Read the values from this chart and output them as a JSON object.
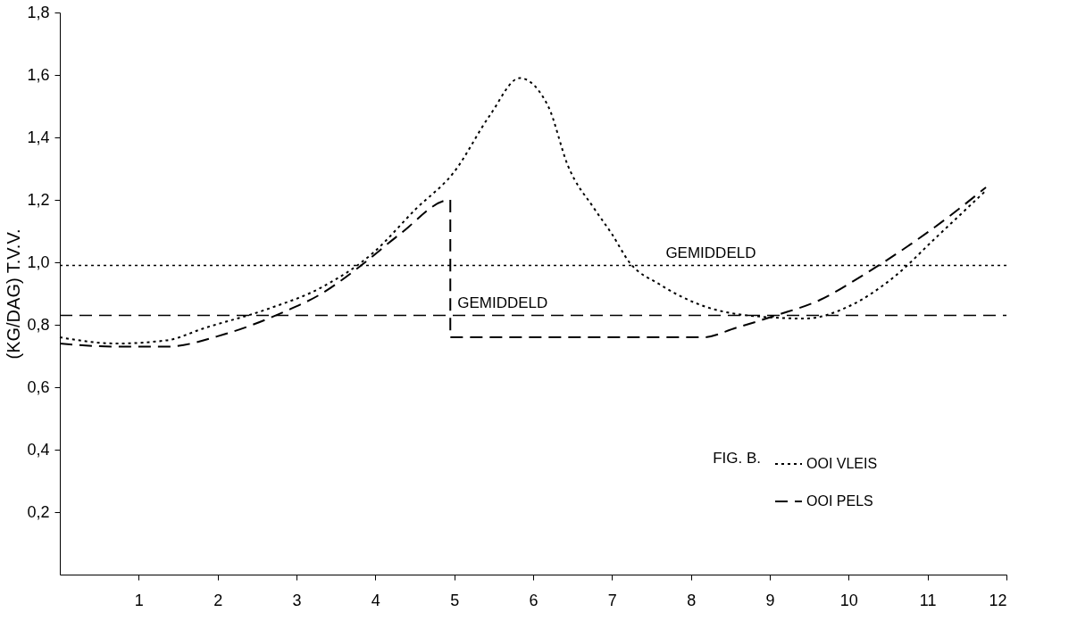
{
  "chart_data": {
    "type": "line",
    "ylabel": "(KG/DAG)  T.V.V.",
    "xlim": [
      0,
      12
    ],
    "xticks": [
      1,
      2,
      3,
      4,
      5,
      6,
      7,
      8,
      9,
      10,
      11,
      12
    ],
    "ylim": [
      0,
      1.8
    ],
    "yticks": [
      {
        "value": 0.2,
        "label": "0,2"
      },
      {
        "value": 0.4,
        "label": "0,4"
      },
      {
        "value": 0.6,
        "label": "0,6"
      },
      {
        "value": 0.8,
        "label": "0,8"
      },
      {
        "value": 1.0,
        "label": "1,0"
      },
      {
        "value": 1.2,
        "label": "1,2"
      },
      {
        "value": 1.4,
        "label": "1,4"
      },
      {
        "value": 1.6,
        "label": "1,6"
      },
      {
        "value": 1.8,
        "label": "1,8"
      }
    ],
    "series": [
      {
        "name": "OOI VLEIS",
        "color": "#000000",
        "line_style": "dotted",
        "x": [
          0,
          0.71,
          1.35,
          1.84,
          2.63,
          3.32,
          3.97,
          4.51,
          5.0,
          5.45,
          5.83,
          6.19,
          6.44,
          6.78,
          7.0,
          7.22,
          7.6,
          8.16,
          8.72,
          9.45,
          10.01,
          10.56,
          11.11,
          11.74
        ],
        "values": [
          0.76,
          0.74,
          0.75,
          0.79,
          0.85,
          0.92,
          1.03,
          1.17,
          1.29,
          1.47,
          1.59,
          1.5,
          1.31,
          1.17,
          1.09,
          1.0,
          0.93,
          0.86,
          0.83,
          0.82,
          0.86,
          0.95,
          1.08,
          1.23
        ]
      },
      {
        "name": "OOI PELS",
        "color": "#000000",
        "line_style": "dashed",
        "x": [
          0,
          0.71,
          1.35,
          2.09,
          2.83,
          3.32,
          3.82,
          4.31,
          4.95,
          4.95,
          6.0,
          7.0,
          8.16,
          8.57,
          9.08,
          9.64,
          10.19,
          10.74,
          11.29,
          11.74
        ],
        "values": [
          0.74,
          0.73,
          0.73,
          0.77,
          0.84,
          0.9,
          0.99,
          1.09,
          1.2,
          0.76,
          0.76,
          0.76,
          0.76,
          0.79,
          0.83,
          0.88,
          0.96,
          1.05,
          1.15,
          1.24
        ]
      }
    ],
    "ref_lines": [
      {
        "axis": "y",
        "value": 0.99,
        "label": "GEMIDDELD",
        "color": "#000000",
        "line_style": "dotted"
      },
      {
        "axis": "y",
        "value": 0.83,
        "label": "GEMIDDELD",
        "color": "#000000",
        "line_style": "dashed"
      }
    ],
    "annotations": [
      "FIG. B."
    ],
    "legend": "bottom right",
    "grid": false,
    "marker": "none"
  }
}
